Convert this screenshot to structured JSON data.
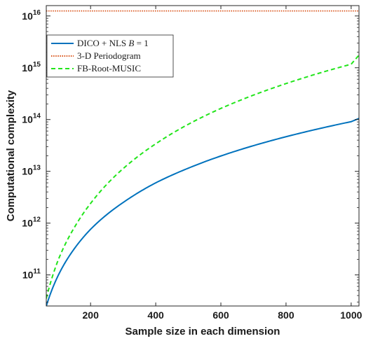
{
  "chart_data": {
    "type": "line",
    "title": "",
    "xlabel": "Sample size in each dimension",
    "ylabel": "Computational complexity",
    "xlim": [
      64,
      1024
    ],
    "ylim_log10": [
      10.4,
      16.2
    ],
    "yscale": "log",
    "grid": false,
    "legend_position": "top-left",
    "x_ticks": [
      200,
      400,
      600,
      800,
      1000
    ],
    "y_ticks": [
      {
        "base": "10",
        "exp": "11",
        "value": 100000000000.0
      },
      {
        "base": "10",
        "exp": "12",
        "value": 1000000000000.0
      },
      {
        "base": "10",
        "exp": "13",
        "value": 10000000000000.0
      },
      {
        "base": "10",
        "exp": "14",
        "value": 100000000000000.0
      },
      {
        "base": "10",
        "exp": "15",
        "value": 1000000000000000.0
      },
      {
        "base": "10",
        "exp": "16",
        "value": 1e+16
      }
    ],
    "series": [
      {
        "name": "DICO + NLS B = 1",
        "legend_text": "DICO + NLS ",
        "legend_italic": "B",
        "legend_suffix": " = 1",
        "color": "#0072bd",
        "style": "solid",
        "x": [
          64,
          100,
          150,
          200,
          300,
          400,
          500,
          600,
          700,
          800,
          900,
          1000,
          1024
        ],
        "y": [
          25000000000.0,
          96000000000.0,
          320000000000.0,
          760000000000.0,
          2500000000000.0,
          6000000000000.0,
          11500000000000.0,
          19800000000000.0,
          31300000000000.0,
          46600000000000.0,
          66300000000000.0,
          91000000000000.0,
          105000000000000.0
        ]
      },
      {
        "name": "3-D Periodogram",
        "legend_text": "3-D Periodogram",
        "color": "#d95319",
        "style": "dotted",
        "x": [
          64,
          1024
        ],
        "y": [
          1.25e+16,
          1.25e+16
        ]
      },
      {
        "name": "FB-Root-MUSIC",
        "legend_text": "FB-Root-MUSIC",
        "color": "#22e51b",
        "style": "dashed",
        "x": [
          64,
          100,
          150,
          200,
          300,
          400,
          500,
          600,
          700,
          800,
          900,
          1000,
          1024
        ],
        "y": [
          35000000000.0,
          190000000000.0,
          820000000000.0,
          2400000000000.0,
          11300000000000.0,
          34000000000000.0,
          81000000000000.0,
          164000000000000.0,
          296000000000000.0,
          495000000000000.0,
          780000000000000.0,
          1170000000000000.0,
          1750000000000000.0
        ]
      }
    ]
  }
}
